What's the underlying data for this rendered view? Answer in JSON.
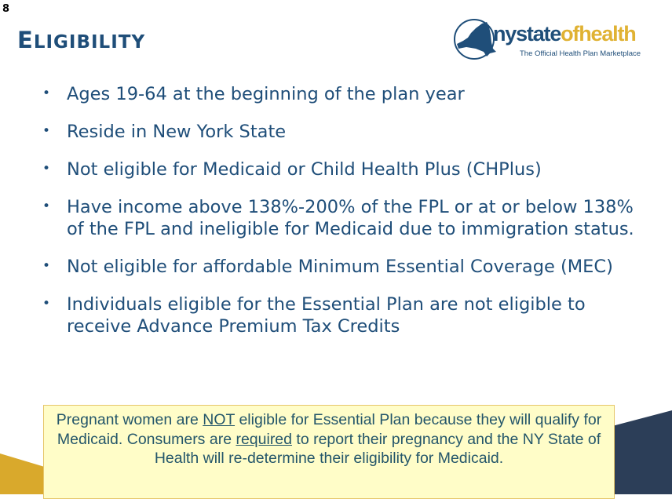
{
  "slide_number": "8",
  "title": {
    "first_letter": "E",
    "rest": "LIGIBILITY"
  },
  "logo": {
    "ny": "nystate",
    "of": "ofhealth",
    "tagline": "The Official Health Plan Marketplace",
    "icon": "new-york-state-map-icon"
  },
  "bullets": [
    "Ages 19-64 at the beginning of the plan year",
    "Reside in New York State",
    "Not eligible for Medicaid or Child Health Plus (CHPlus)",
    "Have income above 138%-200% of the FPL or at or below 138% of the FPL and ineligible for Medicaid due to immigration status.",
    "Not eligible for affordable Minimum Essential Coverage (MEC)",
    "Individuals eligible for the Essential Plan are not eligible to receive Advance Premium Tax Credits"
  ],
  "callout": {
    "p1": "Pregnant women are ",
    "p2": "NOT",
    "p3": " eligible for Essential Plan because they will qualify for Medicaid.  Consumers are ",
    "p4": "required",
    "p5": " to report their pregnancy and the NY State of Health will re-determine their eligibility for Medicaid."
  },
  "colors": {
    "navy": "#1f4e79",
    "gold": "#d9a92c",
    "dark_navy": "#2c3e58",
    "callout_bg": "#fffdc8"
  }
}
